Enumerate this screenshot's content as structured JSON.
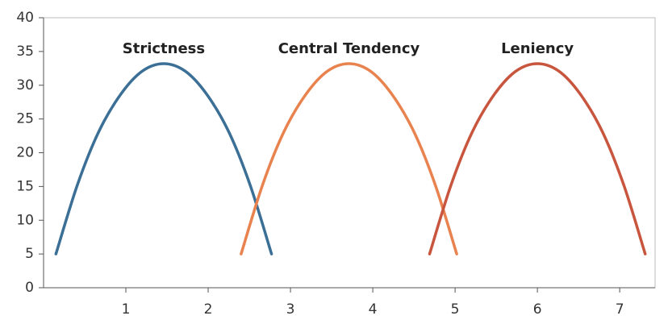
{
  "chart_data": {
    "type": "line",
    "series": [
      {
        "name": "Strictness",
        "color": "#3b6f96",
        "x": [
          0.15,
          0.41,
          0.67,
          0.94,
          1.2,
          1.46,
          1.72,
          1.98,
          2.25,
          2.51,
          2.77
        ],
        "values": [
          5,
          15.2,
          23.1,
          28.7,
          32.1,
          33.2,
          32.1,
          28.7,
          23.1,
          15.2,
          5
        ]
      },
      {
        "name": "Central Tendency",
        "color": "#e8834f",
        "x": [
          2.4,
          2.66,
          2.92,
          3.19,
          3.45,
          3.71,
          3.97,
          4.23,
          4.5,
          4.76,
          5.02
        ],
        "values": [
          5,
          15.2,
          23.1,
          28.7,
          32.1,
          33.2,
          32.1,
          28.7,
          23.1,
          15.2,
          5
        ]
      },
      {
        "name": "Leniency",
        "color": "#c8553d",
        "x": [
          4.69,
          4.95,
          5.21,
          5.48,
          5.74,
          6.0,
          6.26,
          6.52,
          6.79,
          7.05,
          7.31
        ],
        "values": [
          5,
          15.2,
          23.1,
          28.7,
          32.1,
          33.2,
          32.1,
          28.7,
          23.1,
          15.2,
          5
        ]
      }
    ],
    "xlim": [
      0,
      7.43
    ],
    "xticks": [
      1,
      2,
      3,
      4,
      5,
      6,
      7
    ],
    "ylim": [
      0,
      40
    ],
    "yticks": [
      0,
      5,
      10,
      15,
      20,
      25,
      30,
      35,
      40
    ]
  }
}
